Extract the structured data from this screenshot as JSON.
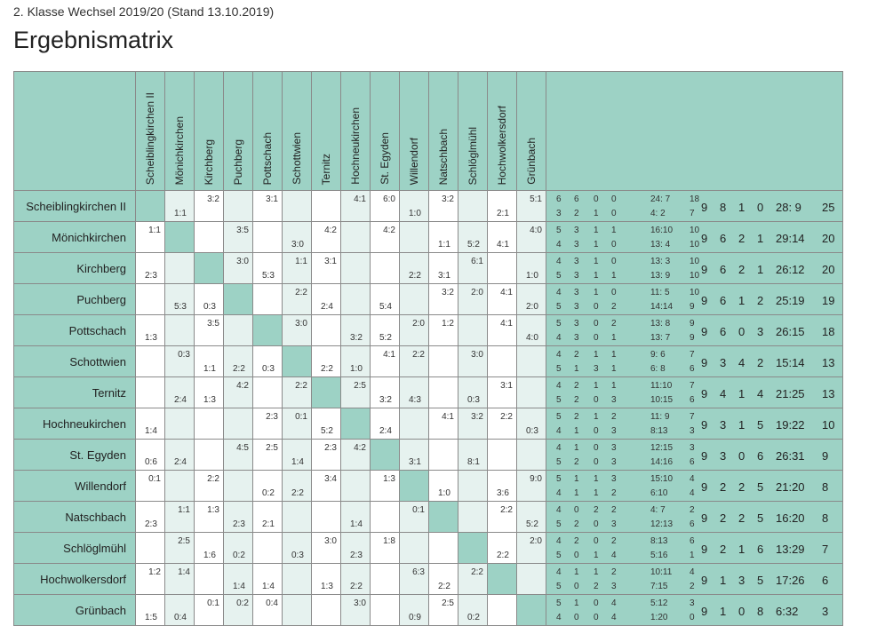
{
  "header": {
    "subtitle": "2. Klasse Wechsel 2019/20 (Stand 13.10.2019)",
    "title": "Ergebnismatrix"
  },
  "teams": [
    "Scheiblingkirchen II",
    "Mönichkirchen",
    "Kirchberg",
    "Puchberg",
    "Pottschach",
    "Schottwien",
    "Ternitz",
    "Hochneukirchen",
    "St. Egyden",
    "Willendorf",
    "Natschbach",
    "Schlöglmühl",
    "Hochwolkersdorf",
    "Grünbach"
  ],
  "rows": [
    {
      "team": "Scheiblingkirchen II",
      "cells": [
        [
          "",
          ""
        ],
        [
          "",
          "1:1"
        ],
        [
          "3:2",
          ""
        ],
        [
          "",
          ""
        ],
        [
          "3:1",
          ""
        ],
        [
          "",
          ""
        ],
        [
          "",
          ""
        ],
        [
          "4:1",
          ""
        ],
        [
          "6:0",
          ""
        ],
        [
          "",
          "1:0"
        ],
        [
          "3:2",
          ""
        ],
        [
          "",
          ""
        ],
        [
          "",
          "2:1"
        ],
        [
          "5:1",
          ""
        ]
      ],
      "home": [
        "6",
        "6",
        "0",
        "0",
        "24: 7",
        "18"
      ],
      "away": [
        "3",
        "2",
        "1",
        "0",
        "4: 2",
        "7"
      ],
      "total": [
        "9",
        "8",
        "1",
        "0",
        "28: 9",
        "25"
      ]
    },
    {
      "team": "Mönichkirchen",
      "cells": [
        [
          "1:1",
          ""
        ],
        [
          "",
          ""
        ],
        [
          "",
          ""
        ],
        [
          "3:5",
          ""
        ],
        [
          "",
          ""
        ],
        [
          "",
          "3:0"
        ],
        [
          "4:2",
          ""
        ],
        [
          "",
          ""
        ],
        [
          "4:2",
          ""
        ],
        [
          "",
          ""
        ],
        [
          "",
          "1:1"
        ],
        [
          "",
          "5:2"
        ],
        [
          "",
          "4:1"
        ],
        [
          "4:0",
          ""
        ]
      ],
      "home": [
        "5",
        "3",
        "1",
        "1",
        "16:10",
        "10"
      ],
      "away": [
        "4",
        "3",
        "1",
        "0",
        "13: 4",
        "10"
      ],
      "total": [
        "9",
        "6",
        "2",
        "1",
        "29:14",
        "20"
      ]
    },
    {
      "team": "Kirchberg",
      "cells": [
        [
          "",
          "2:3"
        ],
        [
          "",
          ""
        ],
        [
          "",
          ""
        ],
        [
          "3:0",
          ""
        ],
        [
          "",
          "5:3"
        ],
        [
          "1:1",
          ""
        ],
        [
          "3:1",
          ""
        ],
        [
          "",
          ""
        ],
        [
          "",
          ""
        ],
        [
          "",
          "2:2"
        ],
        [
          "",
          "3:1"
        ],
        [
          "6:1",
          ""
        ],
        [
          "",
          ""
        ],
        [
          "",
          "1:0"
        ]
      ],
      "home": [
        "4",
        "3",
        "1",
        "0",
        "13: 3",
        "10"
      ],
      "away": [
        "5",
        "3",
        "1",
        "1",
        "13: 9",
        "10"
      ],
      "total": [
        "9",
        "6",
        "2",
        "1",
        "26:12",
        "20"
      ]
    },
    {
      "team": "Puchberg",
      "cells": [
        [
          "",
          ""
        ],
        [
          "",
          "5:3"
        ],
        [
          "",
          "0:3"
        ],
        [
          "",
          ""
        ],
        [
          "",
          ""
        ],
        [
          "2:2",
          ""
        ],
        [
          "",
          "2:4"
        ],
        [
          "",
          ""
        ],
        [
          "",
          "5:4"
        ],
        [
          "",
          ""
        ],
        [
          "3:2",
          ""
        ],
        [
          "2:0",
          ""
        ],
        [
          "4:1",
          ""
        ],
        [
          "",
          "2:0"
        ]
      ],
      "home": [
        "4",
        "3",
        "1",
        "0",
        "11: 5",
        "10"
      ],
      "away": [
        "5",
        "3",
        "0",
        "2",
        "14:14",
        "9"
      ],
      "total": [
        "9",
        "6",
        "1",
        "2",
        "25:19",
        "19"
      ]
    },
    {
      "team": "Pottschach",
      "cells": [
        [
          "",
          "1:3"
        ],
        [
          "",
          ""
        ],
        [
          "3:5",
          ""
        ],
        [
          "",
          ""
        ],
        [
          "",
          ""
        ],
        [
          "3:0",
          ""
        ],
        [
          "",
          ""
        ],
        [
          "",
          "3:2"
        ],
        [
          "",
          "5:2"
        ],
        [
          "2:0",
          ""
        ],
        [
          "1:2",
          ""
        ],
        [
          "",
          ""
        ],
        [
          "4:1",
          ""
        ],
        [
          "",
          "4:0"
        ]
      ],
      "home": [
        "5",
        "3",
        "0",
        "2",
        "13: 8",
        "9"
      ],
      "away": [
        "4",
        "3",
        "0",
        "1",
        "13: 7",
        "9"
      ],
      "total": [
        "9",
        "6",
        "0",
        "3",
        "26:15",
        "18"
      ]
    },
    {
      "team": "Schottwien",
      "cells": [
        [
          "",
          ""
        ],
        [
          "0:3",
          ""
        ],
        [
          "",
          "1:1"
        ],
        [
          "",
          "2:2"
        ],
        [
          "",
          "0:3"
        ],
        [
          "",
          ""
        ],
        [
          "",
          "2:2"
        ],
        [
          "",
          "1:0"
        ],
        [
          "4:1",
          ""
        ],
        [
          "2:2",
          ""
        ],
        [
          "",
          ""
        ],
        [
          "3:0",
          ""
        ],
        [
          "",
          ""
        ],
        [
          "",
          ""
        ]
      ],
      "home": [
        "4",
        "2",
        "1",
        "1",
        "9: 6",
        "7"
      ],
      "away": [
        "5",
        "1",
        "3",
        "1",
        "6: 8",
        "6"
      ],
      "total": [
        "9",
        "3",
        "4",
        "2",
        "15:14",
        "13"
      ]
    },
    {
      "team": "Ternitz",
      "cells": [
        [
          "",
          ""
        ],
        [
          "",
          "2:4"
        ],
        [
          "",
          "1:3"
        ],
        [
          "4:2",
          ""
        ],
        [
          "",
          ""
        ],
        [
          "2:2",
          ""
        ],
        [
          "",
          ""
        ],
        [
          "2:5",
          ""
        ],
        [
          "",
          "3:2"
        ],
        [
          "",
          "4:3"
        ],
        [
          "",
          ""
        ],
        [
          "",
          "0:3"
        ],
        [
          "3:1",
          ""
        ],
        [
          "",
          ""
        ]
      ],
      "home": [
        "4",
        "2",
        "1",
        "1",
        "11:10",
        "7"
      ],
      "away": [
        "5",
        "2",
        "0",
        "3",
        "10:15",
        "6"
      ],
      "total": [
        "9",
        "4",
        "1",
        "4",
        "21:25",
        "13"
      ]
    },
    {
      "team": "Hochneukirchen",
      "cells": [
        [
          "",
          "1:4"
        ],
        [
          "",
          ""
        ],
        [
          "",
          ""
        ],
        [
          "",
          ""
        ],
        [
          "2:3",
          ""
        ],
        [
          "0:1",
          ""
        ],
        [
          "",
          "5:2"
        ],
        [
          "",
          ""
        ],
        [
          "",
          "2:4"
        ],
        [
          "",
          ""
        ],
        [
          "4:1",
          ""
        ],
        [
          "3:2",
          ""
        ],
        [
          "2:2",
          ""
        ],
        [
          "",
          "0:3"
        ]
      ],
      "home": [
        "5",
        "2",
        "1",
        "2",
        "11: 9",
        "7"
      ],
      "away": [
        "4",
        "1",
        "0",
        "3",
        "8:13",
        "3"
      ],
      "total": [
        "9",
        "3",
        "1",
        "5",
        "19:22",
        "10"
      ]
    },
    {
      "team": "St. Egyden",
      "cells": [
        [
          "",
          "0:6"
        ],
        [
          "",
          "2:4"
        ],
        [
          "",
          ""
        ],
        [
          "4:5",
          ""
        ],
        [
          "2:5",
          ""
        ],
        [
          "",
          "1:4"
        ],
        [
          "2:3",
          ""
        ],
        [
          "4:2",
          ""
        ],
        [
          "",
          ""
        ],
        [
          "",
          "3:1"
        ],
        [
          "",
          ""
        ],
        [
          "",
          "8:1"
        ],
        [
          "",
          ""
        ],
        [
          "",
          ""
        ]
      ],
      "home": [
        "4",
        "1",
        "0",
        "3",
        "12:15",
        "3"
      ],
      "away": [
        "5",
        "2",
        "0",
        "3",
        "14:16",
        "6"
      ],
      "total": [
        "9",
        "3",
        "0",
        "6",
        "26:31",
        "9"
      ]
    },
    {
      "team": "Willendorf",
      "cells": [
        [
          "0:1",
          ""
        ],
        [
          "",
          ""
        ],
        [
          "2:2",
          ""
        ],
        [
          "",
          ""
        ],
        [
          "",
          "0:2"
        ],
        [
          "",
          "2:2"
        ],
        [
          "3:4",
          ""
        ],
        [
          "",
          ""
        ],
        [
          "1:3",
          ""
        ],
        [
          "",
          ""
        ],
        [
          "",
          "1:0"
        ],
        [
          "",
          ""
        ],
        [
          "",
          "3:6"
        ],
        [
          "9:0",
          ""
        ]
      ],
      "home": [
        "5",
        "1",
        "1",
        "3",
        "15:10",
        "4"
      ],
      "away": [
        "4",
        "1",
        "1",
        "2",
        "6:10",
        "4"
      ],
      "total": [
        "9",
        "2",
        "2",
        "5",
        "21:20",
        "8"
      ]
    },
    {
      "team": "Natschbach",
      "cells": [
        [
          "",
          "2:3"
        ],
        [
          "1:1",
          ""
        ],
        [
          "1:3",
          ""
        ],
        [
          "",
          "2:3"
        ],
        [
          "",
          "2:1"
        ],
        [
          "",
          ""
        ],
        [
          "",
          ""
        ],
        [
          "",
          "1:4"
        ],
        [
          "",
          ""
        ],
        [
          "0:1",
          ""
        ],
        [
          "",
          ""
        ],
        [
          "",
          ""
        ],
        [
          "2:2",
          ""
        ],
        [
          "",
          "5:2"
        ]
      ],
      "home": [
        "4",
        "0",
        "2",
        "2",
        "4: 7",
        "2"
      ],
      "away": [
        "5",
        "2",
        "0",
        "3",
        "12:13",
        "6"
      ],
      "total": [
        "9",
        "2",
        "2",
        "5",
        "16:20",
        "8"
      ]
    },
    {
      "team": "Schlöglmühl",
      "cells": [
        [
          "",
          ""
        ],
        [
          "2:5",
          ""
        ],
        [
          "",
          "1:6"
        ],
        [
          "",
          "0:2"
        ],
        [
          "",
          ""
        ],
        [
          "",
          "0:3"
        ],
        [
          "3:0",
          ""
        ],
        [
          "",
          "2:3"
        ],
        [
          "1:8",
          ""
        ],
        [
          "",
          ""
        ],
        [
          "",
          ""
        ],
        [
          "",
          ""
        ],
        [
          "",
          "2:2"
        ],
        [
          "2:0",
          ""
        ]
      ],
      "home": [
        "4",
        "2",
        "0",
        "2",
        "8:13",
        "6"
      ],
      "away": [
        "5",
        "0",
        "1",
        "4",
        "5:16",
        "1"
      ],
      "total": [
        "9",
        "2",
        "1",
        "6",
        "13:29",
        "7"
      ]
    },
    {
      "team": "Hochwolkersdorf",
      "cells": [
        [
          "1:2",
          ""
        ],
        [
          "1:4",
          ""
        ],
        [
          "",
          ""
        ],
        [
          "",
          "1:4"
        ],
        [
          "",
          "1:4"
        ],
        [
          "",
          ""
        ],
        [
          "",
          "1:3"
        ],
        [
          "",
          "2:2"
        ],
        [
          "",
          ""
        ],
        [
          "6:3",
          ""
        ],
        [
          "",
          "2:2"
        ],
        [
          "2:2",
          ""
        ],
        [
          "",
          ""
        ],
        [
          "",
          ""
        ]
      ],
      "home": [
        "4",
        "1",
        "1",
        "2",
        "10:11",
        "4"
      ],
      "away": [
        "5",
        "0",
        "2",
        "3",
        "7:15",
        "2"
      ],
      "total": [
        "9",
        "1",
        "3",
        "5",
        "17:26",
        "6"
      ]
    },
    {
      "team": "Grünbach",
      "cells": [
        [
          "",
          "1:5"
        ],
        [
          "",
          "0:4"
        ],
        [
          "0:1",
          ""
        ],
        [
          "0:2",
          ""
        ],
        [
          "0:4",
          ""
        ],
        [
          "",
          ""
        ],
        [
          "",
          ""
        ],
        [
          "3:0",
          ""
        ],
        [
          "",
          ""
        ],
        [
          "",
          "0:9"
        ],
        [
          "2:5",
          ""
        ],
        [
          "",
          "0:2"
        ],
        [
          "",
          ""
        ],
        [
          "",
          ""
        ]
      ],
      "home": [
        "5",
        "1",
        "0",
        "4",
        "5:12",
        "3"
      ],
      "away": [
        "4",
        "0",
        "0",
        "4",
        "1:20",
        "0"
      ],
      "total": [
        "9",
        "1",
        "0",
        "8",
        "6:32",
        "3"
      ]
    }
  ],
  "colors": {
    "header_bg": "#9dd2c5",
    "alt_cell": "#e6f2ef",
    "border": "#8a8a8a"
  }
}
